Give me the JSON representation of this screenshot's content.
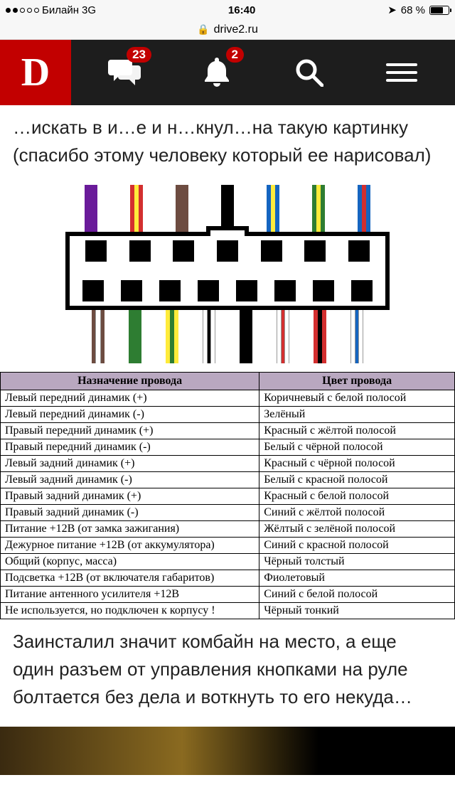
{
  "status": {
    "carrier": "Билайн",
    "network": "3G",
    "time": "16:40",
    "battery_pct": "68 %",
    "battery_fill_pct": 68,
    "signal_dots_filled": 2,
    "signal_dots_total": 5
  },
  "browser": {
    "url": "drive2.ru"
  },
  "header": {
    "logo_letter": "D",
    "logo_bg": "#c20000",
    "bar_bg": "#1d1d1d",
    "msg_badge": "23",
    "notif_badge": "2"
  },
  "article": {
    "text_top": "…искать в и…е и н…кнул…на такую картинку (спасибо этому человеку который ее нарисовал)",
    "text_bottom": "Заинсталил значит комбайн на место, а еще один разъем от управления кнопками на руле болтается без дела и воткнуть то его некуда…"
  },
  "diagram": {
    "type": "wiring-connector",
    "top_wires": [
      {
        "stripes": [
          "#6a1b9a"
        ]
      },
      {
        "stripes": [
          "#d32f2f",
          "#ffeb3b",
          "#d32f2f"
        ]
      },
      {
        "stripes": [
          "#6d4c41"
        ]
      },
      {
        "stripes": [
          "#000000"
        ]
      },
      {
        "stripes": [
          "#1565c0",
          "#ffeb3b",
          "#1565c0"
        ]
      },
      {
        "stripes": [
          "#2e7d32",
          "#ffeb3b",
          "#2e7d32"
        ]
      },
      {
        "stripes": [
          "#1565c0",
          "#d32f2f",
          "#1565c0"
        ]
      }
    ],
    "bottom_wires": [
      {
        "stripes": [
          "#6d4c41",
          "#ffffff",
          "#6d4c41"
        ]
      },
      {
        "stripes": [
          "#2e7d32"
        ]
      },
      {
        "stripes": [
          "#ffeb3b",
          "#2e7d32",
          "#ffeb3b"
        ]
      },
      {
        "stripes": [
          "#ffffff",
          "#000000",
          "#ffffff"
        ]
      },
      {
        "stripes": [
          "#000000"
        ]
      },
      {
        "stripes": [
          "#ffffff",
          "#d32f2f",
          "#ffffff"
        ]
      },
      {
        "stripes": [
          "#d32f2f",
          "#000000",
          "#d32f2f"
        ]
      },
      {
        "stripes": [
          "#ffffff",
          "#1565c0",
          "#ffffff"
        ]
      }
    ],
    "connector": {
      "top_pins": 7,
      "bottom_pins": 8,
      "border_color": "#000000"
    }
  },
  "table": {
    "header_bg": "#b9a8c0",
    "columns": [
      "Назначение провода",
      "Цвет провода"
    ],
    "rows": [
      [
        "Левый передний динамик (+)",
        "Коричневый с белой полосой"
      ],
      [
        "Левый передний динамик (-)",
        "Зелёный"
      ],
      [
        "Правый передний динамик (+)",
        "Красный с жёлтой полосой"
      ],
      [
        "Правый передний динамик (-)",
        "Белый с чёрной полосой"
      ],
      [
        "Левый задний динамик (+)",
        "Красный с чёрной полосой"
      ],
      [
        "Левый задний динамик (-)",
        "Белый с красной полосой"
      ],
      [
        "Правый задний динамик (+)",
        "Красный с белой полосой"
      ],
      [
        "Правый задний динамик (-)",
        "Синий с жёлтой полосой"
      ],
      [
        "Питание +12В (от замка зажигания)",
        "Жёлтый с зелёной полосой"
      ],
      [
        "Дежурное питание +12В (от аккумулятора)",
        "Синий с красной полосой"
      ],
      [
        "Общий (корпус, масса)",
        "Чёрный толстый"
      ],
      [
        "Подсветка +12В (от включателя габаритов)",
        "Фиолетовый"
      ],
      [
        "Питание антенного усилителя +12В",
        "Синий с белой полосой"
      ],
      [
        "Не используется, но подключен к корпусу !",
        "Чёрный тонкий"
      ]
    ]
  }
}
